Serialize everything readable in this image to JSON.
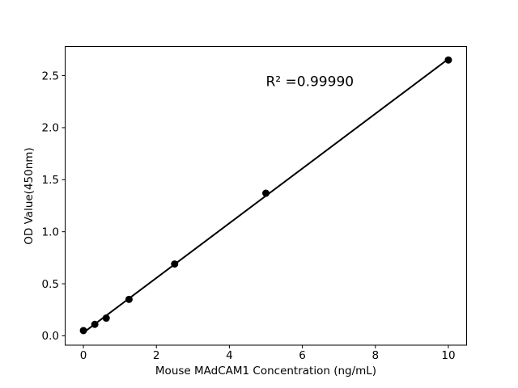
{
  "chart_data": {
    "type": "scatter",
    "title": "",
    "xlabel": "Mouse MAdCAM1 Concentration (ng/mL)",
    "ylabel": "OD Value(450nm)",
    "x": [
      0,
      0.3125,
      0.625,
      1.25,
      2.5,
      5,
      10
    ],
    "y": [
      0.05,
      0.11,
      0.17,
      0.35,
      0.69,
      1.37,
      2.65
    ],
    "fit_line": {
      "x": [
        0,
        10
      ],
      "y": [
        0.03,
        2.66
      ]
    },
    "annotation": {
      "text": "R² =0.99990",
      "x": 5,
      "y": 2.4
    },
    "xlim": [
      -0.5,
      10.5
    ],
    "ylim": [
      -0.09,
      2.78
    ],
    "xticks": {
      "values": [
        0,
        2,
        4,
        6,
        8,
        10
      ],
      "labels": [
        "0",
        "2",
        "4",
        "6",
        "8",
        "10"
      ]
    },
    "yticks": {
      "values": [
        0,
        0.5,
        1,
        1.5,
        2,
        2.5
      ],
      "labels": [
        "0.0",
        "0.5",
        "1.0",
        "1.5",
        "2.0",
        "2.5"
      ]
    },
    "grid": false,
    "legend": null,
    "colors": {
      "marker": "#000000",
      "line": "#000000",
      "axis": "#000000",
      "text": "#000000",
      "background": "#ffffff"
    }
  }
}
